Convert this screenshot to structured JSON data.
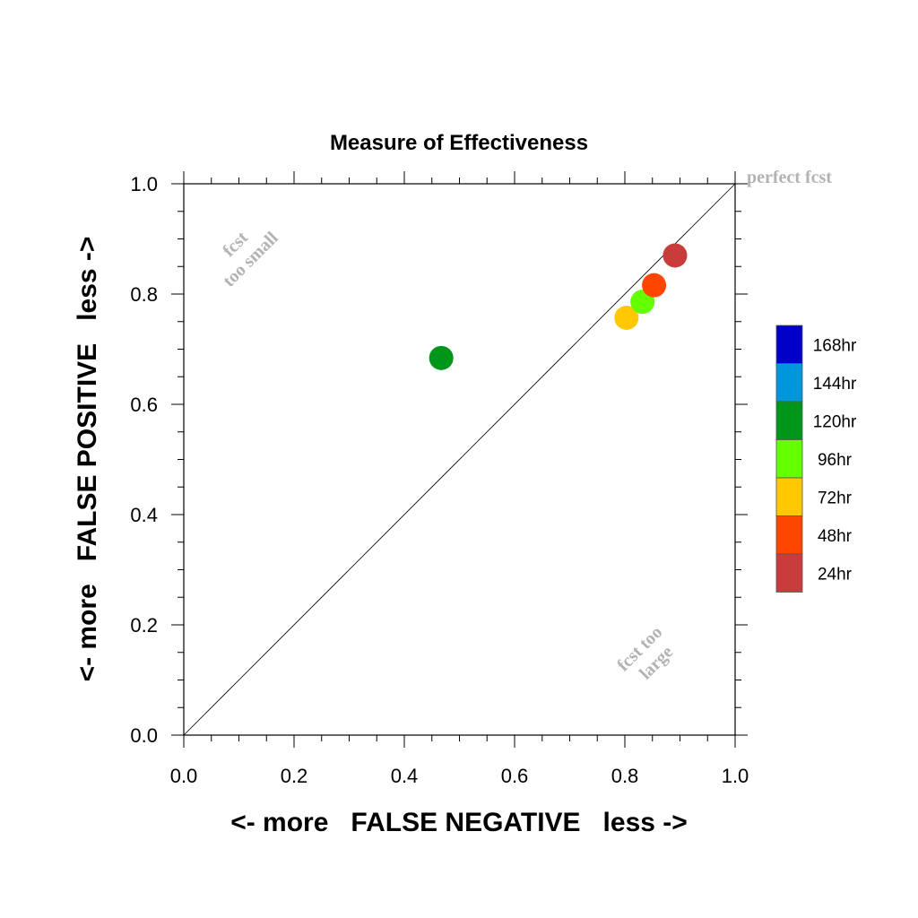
{
  "chart_data": {
    "type": "scatter",
    "title": "Measure of Effectiveness",
    "xlabel": "<- more   FALSE NEGATIVE   less ->",
    "ylabel": "<- more   FALSE POSITIVE   less ->",
    "xlim": [
      0.0,
      1.0
    ],
    "ylim": [
      0.0,
      1.0
    ],
    "xticks": [
      "0.0",
      "0.2",
      "0.4",
      "0.6",
      "0.8",
      "1.0"
    ],
    "yticks": [
      "0.0",
      "0.2",
      "0.4",
      "0.6",
      "0.8",
      "1.0"
    ],
    "grid": false,
    "reference_line": "y = x diagonal",
    "annotations": {
      "perfect": "perfect fcst",
      "small_line1": "fcst",
      "small_line2": "too small",
      "large_line1": "fcst too",
      "large_line2": "large"
    },
    "legend": {
      "placement": "right",
      "entries": [
        {
          "label": "168hr",
          "color": "#0000c8"
        },
        {
          "label": "144hr",
          "color": "#0096dc"
        },
        {
          "label": "120hr",
          "color": "#009619"
        },
        {
          "label": "96hr",
          "color": "#64ff00"
        },
        {
          "label": "72hr",
          "color": "#ffc800"
        },
        {
          "label": "48hr",
          "color": "#ff4600"
        },
        {
          "label": "24hr",
          "color": "#c83c3c"
        }
      ]
    },
    "points": [
      {
        "label": "120hr",
        "x": 0.467,
        "y": 0.684,
        "color": "#009619"
      },
      {
        "label": "72hr",
        "x": 0.803,
        "y": 0.757,
        "color": "#ffc800"
      },
      {
        "label": "96hr",
        "x": 0.832,
        "y": 0.786,
        "color": "#64ff00"
      },
      {
        "label": "48hr",
        "x": 0.853,
        "y": 0.816,
        "color": "#ff4600"
      },
      {
        "label": "24hr",
        "x": 0.891,
        "y": 0.87,
        "color": "#c83c3c"
      }
    ]
  }
}
